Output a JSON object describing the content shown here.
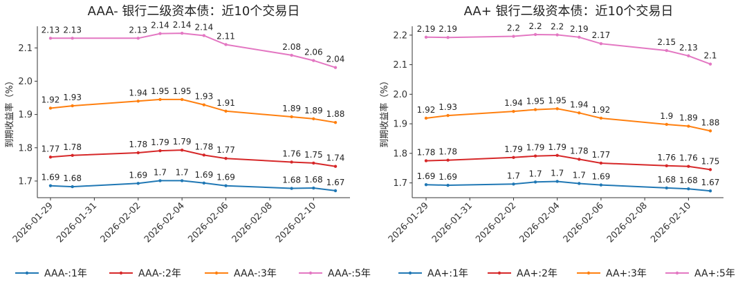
{
  "chart_data": [
    {
      "type": "line",
      "title": "AAA- 银行二级资本债：近10个交易日",
      "ylabel": "到期收益率（%）",
      "xlabel": "",
      "ylim": [
        1.65,
        2.165
      ],
      "yticks": [
        1.7,
        1.8,
        1.9,
        2.0,
        2.1
      ],
      "xtick_labels": [
        "2026-01-29",
        "2026-01-31",
        "2026-02-02",
        "2026-02-04",
        "2026-02-06",
        "2026-02-08",
        "2026-02-10"
      ],
      "x": [
        "2026-01-29",
        "2026-01-30",
        "2026-02-02",
        "2026-02-03",
        "2026-02-04",
        "2026-02-05",
        "2026-02-06",
        "2026-02-09",
        "2026-02-10",
        "2026-02-11"
      ],
      "series": [
        {
          "name": "AAA-:1年",
          "color": "#1f77b4",
          "values": [
            1.686,
            1.683,
            1.693,
            1.701,
            1.701,
            1.694,
            1.686,
            1.678,
            1.679,
            1.671
          ],
          "labels": [
            "1.69",
            "1.68",
            "1.69",
            "1.7",
            "1.7",
            "1.69",
            "1.69",
            "1.68",
            "1.68",
            "1.67"
          ]
        },
        {
          "name": "AAA-:2年",
          "color": "#d62728",
          "values": [
            1.772,
            1.777,
            1.785,
            1.791,
            1.793,
            1.778,
            1.768,
            1.757,
            1.754,
            1.744
          ],
          "labels": [
            "1.77",
            "1.78",
            "1.78",
            "1.79",
            "1.79",
            "1.78",
            "1.77",
            "1.76",
            "1.75",
            "1.74"
          ]
        },
        {
          "name": "AAA-:3年",
          "color": "#ff7f0e",
          "values": [
            1.919,
            1.926,
            1.94,
            1.945,
            1.945,
            1.929,
            1.91,
            1.893,
            1.887,
            1.876
          ],
          "labels": [
            "1.92",
            "1.93",
            "1.94",
            "1.95",
            "1.95",
            "1.93",
            "1.91",
            "1.89",
            "1.89",
            "1.88"
          ]
        },
        {
          "name": "AAA-:5年",
          "color": "#e377c2",
          "values": [
            2.129,
            2.129,
            2.129,
            2.143,
            2.144,
            2.137,
            2.11,
            2.078,
            2.062,
            2.041
          ],
          "labels": [
            "2.13",
            "2.13",
            "2.13",
            "2.14",
            "2.14",
            "2.14",
            "2.11",
            "2.08",
            "2.06",
            "2.04"
          ]
        }
      ]
    },
    {
      "type": "line",
      "title": "AA+ 银行二级资本债：近10个交易日",
      "ylabel": "到期收益率（%）",
      "xlabel": "",
      "ylim": [
        1.65,
        2.23
      ],
      "yticks": [
        1.7,
        1.8,
        1.9,
        2.0,
        2.1,
        2.2
      ],
      "xtick_labels": [
        "2026-01-29",
        "2026-01-31",
        "2026-02-02",
        "2026-02-04",
        "2026-02-06",
        "2026-02-08",
        "2026-02-10"
      ],
      "x": [
        "2026-01-29",
        "2026-01-30",
        "2026-02-02",
        "2026-02-03",
        "2026-02-04",
        "2026-02-05",
        "2026-02-06",
        "2026-02-09",
        "2026-02-10",
        "2026-02-11"
      ],
      "series": [
        {
          "name": "AA+:1年",
          "color": "#1f77b4",
          "values": [
            1.694,
            1.692,
            1.696,
            1.703,
            1.705,
            1.698,
            1.693,
            1.683,
            1.68,
            1.673
          ],
          "labels": [
            "1.69",
            "1.69",
            "1.7",
            "1.7",
            "1.7",
            "1.7",
            "1.69",
            "1.68",
            "1.68",
            "1.67"
          ]
        },
        {
          "name": "AA+:2年",
          "color": "#d62728",
          "values": [
            1.775,
            1.777,
            1.786,
            1.791,
            1.793,
            1.78,
            1.767,
            1.758,
            1.756,
            1.745
          ],
          "labels": [
            "1.78",
            "1.78",
            "1.79",
            "1.79",
            "1.79",
            "1.78",
            "1.77",
            "1.76",
            "1.76",
            "1.75"
          ]
        },
        {
          "name": "AA+:3年",
          "color": "#ff7f0e",
          "values": [
            1.919,
            1.928,
            1.942,
            1.948,
            1.951,
            1.937,
            1.919,
            1.898,
            1.892,
            1.876
          ],
          "labels": [
            "1.92",
            "1.93",
            "1.94",
            "1.95",
            "1.95",
            "1.94",
            "1.92",
            "1.9",
            "1.89",
            "1.88"
          ]
        },
        {
          "name": "AA+:5年",
          "color": "#e377c2",
          "values": [
            2.193,
            2.192,
            2.196,
            2.202,
            2.201,
            2.193,
            2.171,
            2.148,
            2.13,
            2.102
          ],
          "labels": [
            "2.19",
            "2.19",
            "2.2",
            "2.2",
            "2.2",
            "2.19",
            "2.17",
            "2.15",
            "2.13",
            "2.1"
          ]
        }
      ]
    }
  ]
}
